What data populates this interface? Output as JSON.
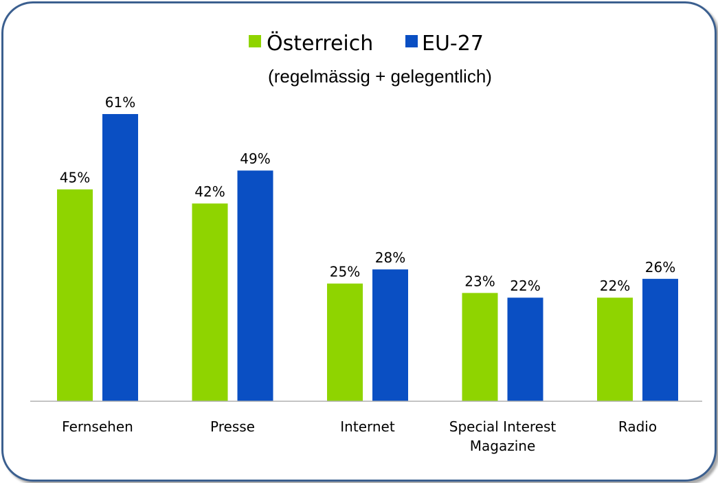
{
  "chart_data": {
    "type": "bar",
    "subtitle": "(regelmässig + gelegentlich)",
    "categories": [
      [
        "Fernsehen"
      ],
      [
        "Presse"
      ],
      [
        "Internet"
      ],
      [
        "Special Interest",
        "Magazine"
      ],
      [
        "Radio"
      ]
    ],
    "series": [
      {
        "name": "Österreich",
        "color": "#8fd400",
        "values": [
          45,
          42,
          25,
          23,
          22
        ],
        "labels": [
          "45%",
          "42%",
          "25%",
          "23%",
          "22%"
        ]
      },
      {
        "name": "EU-27",
        "color": "#0a4fc3",
        "values": [
          61,
          49,
          28,
          22,
          26
        ],
        "labels": [
          "61%",
          "49%",
          "28%",
          "22%",
          "26%"
        ]
      }
    ],
    "ylim": [
      0,
      61
    ],
    "grid": false,
    "legend_position": "top-center",
    "axis_color": "#b0b0b0"
  }
}
